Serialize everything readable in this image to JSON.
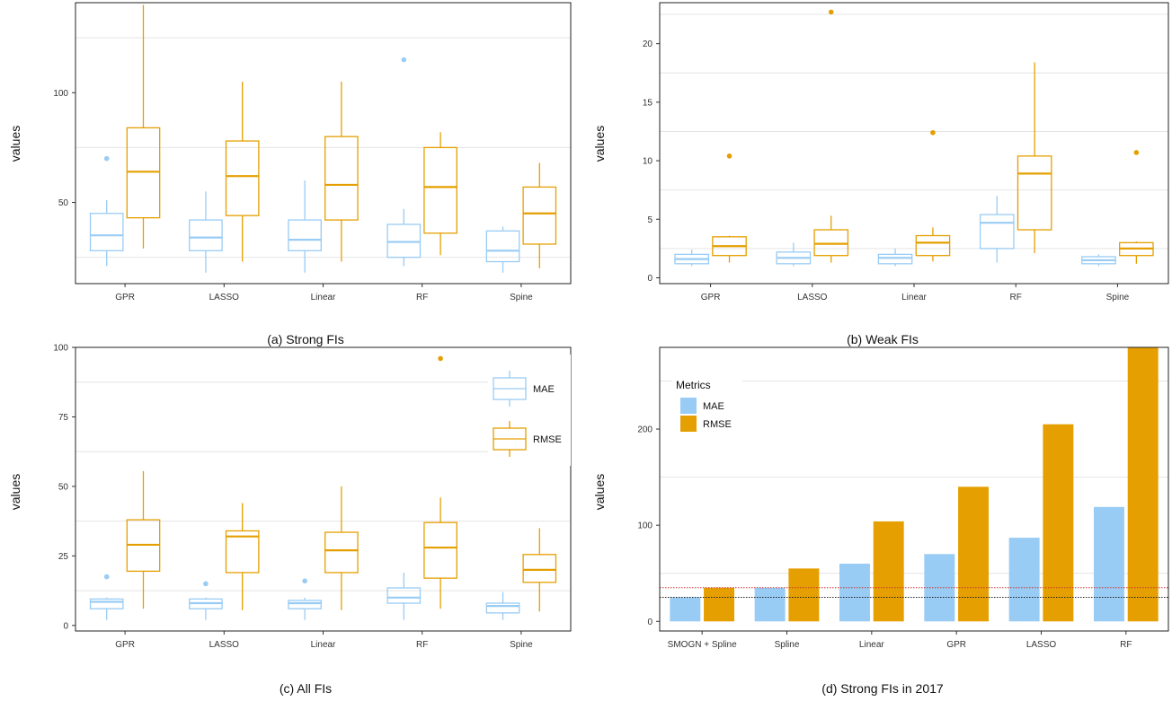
{
  "colors": {
    "mae": "#99CCF5",
    "rmse": "#E59F00",
    "grid": "#e4e4e4",
    "ref_red": "#cc3333",
    "ref_black": "#222222"
  },
  "chart_data": [
    {
      "type": "box",
      "caption": "(a) Strong FIs",
      "ylabel": "values",
      "ylim": [
        13,
        141
      ],
      "yticks": [
        50,
        100
      ],
      "gridlines": [
        25,
        75,
        125
      ],
      "categories": [
        "GPR",
        "LASSO",
        "Linear",
        "RF",
        "Spine"
      ],
      "series": [
        {
          "key": "mae",
          "boxes": [
            {
              "whislo": 21,
              "q1": 28,
              "med": 35,
              "q3": 45,
              "whishi": 51,
              "fliers": [
                70
              ]
            },
            {
              "whislo": 18,
              "q1": 28,
              "med": 34,
              "q3": 42,
              "whishi": 55,
              "fliers": []
            },
            {
              "whislo": 18,
              "q1": 28,
              "med": 33,
              "q3": 42,
              "whishi": 60,
              "fliers": []
            },
            {
              "whislo": 21,
              "q1": 25,
              "med": 32,
              "q3": 40,
              "whishi": 47,
              "fliers": [
                115
              ]
            },
            {
              "whislo": 18,
              "q1": 23,
              "med": 28,
              "q3": 37,
              "whishi": 39,
              "fliers": []
            }
          ]
        },
        {
          "key": "rmse",
          "boxes": [
            {
              "whislo": 29,
              "q1": 43,
              "med": 64,
              "q3": 84,
              "whishi": 140,
              "fliers": []
            },
            {
              "whislo": 23,
              "q1": 44,
              "med": 62,
              "q3": 78,
              "whishi": 105,
              "fliers": []
            },
            {
              "whislo": 23,
              "q1": 42,
              "med": 58,
              "q3": 80,
              "whishi": 105,
              "fliers": []
            },
            {
              "whislo": 26,
              "q1": 36,
              "med": 57,
              "q3": 75,
              "whishi": 82,
              "fliers": []
            },
            {
              "whislo": 20,
              "q1": 31,
              "med": 45,
              "q3": 57,
              "whishi": 68,
              "fliers": []
            }
          ]
        }
      ]
    },
    {
      "type": "box",
      "caption": "(b) Weak FIs",
      "ylabel": "values",
      "ylim": [
        -0.5,
        23.5
      ],
      "yticks": [
        0,
        5,
        10,
        15,
        20
      ],
      "gridlines": [
        2.5,
        7.5,
        12.5,
        17.5,
        22.5
      ],
      "categories": [
        "GPR",
        "LASSO",
        "Linear",
        "RF",
        "Spine"
      ],
      "series": [
        {
          "key": "mae",
          "boxes": [
            {
              "whislo": 1.0,
              "q1": 1.2,
              "med": 1.6,
              "q3": 2.0,
              "whishi": 2.4,
              "fliers": []
            },
            {
              "whislo": 1.0,
              "q1": 1.2,
              "med": 1.7,
              "q3": 2.2,
              "whishi": 3.0,
              "fliers": []
            },
            {
              "whislo": 1.0,
              "q1": 1.2,
              "med": 1.7,
              "q3": 2.0,
              "whishi": 2.5,
              "fliers": []
            },
            {
              "whislo": 1.3,
              "q1": 2.5,
              "med": 4.7,
              "q3": 5.4,
              "whishi": 7.0,
              "fliers": []
            },
            {
              "whislo": 1.0,
              "q1": 1.2,
              "med": 1.5,
              "q3": 1.8,
              "whishi": 2.0,
              "fliers": []
            }
          ]
        },
        {
          "key": "rmse",
          "boxes": [
            {
              "whislo": 1.3,
              "q1": 1.9,
              "med": 2.7,
              "q3": 3.5,
              "whishi": 3.6,
              "fliers": [
                10.4
              ]
            },
            {
              "whislo": 1.3,
              "q1": 1.9,
              "med": 2.9,
              "q3": 4.1,
              "whishi": 5.3,
              "fliers": [
                22.7
              ]
            },
            {
              "whislo": 1.4,
              "q1": 1.9,
              "med": 3.0,
              "q3": 3.6,
              "whishi": 4.3,
              "fliers": [
                12.4
              ]
            },
            {
              "whislo": 2.1,
              "q1": 4.1,
              "med": 8.9,
              "q3": 10.4,
              "whishi": 18.4,
              "fliers": []
            },
            {
              "whislo": 1.2,
              "q1": 1.9,
              "med": 2.5,
              "q3": 3.0,
              "whishi": 3.1,
              "fliers": [
                10.7
              ]
            }
          ]
        }
      ]
    },
    {
      "type": "box",
      "caption": "(c) All FIs",
      "ylabel": "values",
      "ylim": [
        -2,
        100
      ],
      "yticks": [
        0,
        25,
        50,
        75,
        100
      ],
      "gridlines": [
        12.5,
        37.5,
        62.5,
        87.5
      ],
      "categories": [
        "GPR",
        "LASSO",
        "Linear",
        "RF",
        "Spine"
      ],
      "legend": {
        "position": "top-right",
        "items": [
          {
            "key": "mae",
            "label": "MAE"
          },
          {
            "key": "rmse",
            "label": "RMSE"
          }
        ]
      },
      "series": [
        {
          "key": "mae",
          "boxes": [
            {
              "whislo": 2,
              "q1": 6,
              "med": 8.5,
              "q3": 9.5,
              "whishi": 10,
              "fliers": [
                17.5
              ]
            },
            {
              "whislo": 2,
              "q1": 6,
              "med": 8,
              "q3": 9.5,
              "whishi": 10,
              "fliers": [
                15
              ]
            },
            {
              "whislo": 2,
              "q1": 6,
              "med": 8,
              "q3": 9,
              "whishi": 10,
              "fliers": [
                16
              ]
            },
            {
              "whislo": 2,
              "q1": 8,
              "med": 10,
              "q3": 13.5,
              "whishi": 19,
              "fliers": []
            },
            {
              "whislo": 2,
              "q1": 4.5,
              "med": 7,
              "q3": 8,
              "whishi": 12,
              "fliers": []
            }
          ]
        },
        {
          "key": "rmse",
          "boxes": [
            {
              "whislo": 6,
              "q1": 19.5,
              "med": 29,
              "q3": 38,
              "whishi": 55.5,
              "fliers": []
            },
            {
              "whislo": 5.5,
              "q1": 19,
              "med": 32,
              "q3": 34,
              "whishi": 44,
              "fliers": []
            },
            {
              "whislo": 5.5,
              "q1": 19,
              "med": 27,
              "q3": 33.5,
              "whishi": 50,
              "fliers": []
            },
            {
              "whislo": 6,
              "q1": 17,
              "med": 28,
              "q3": 37,
              "whishi": 46,
              "fliers": [
                96
              ]
            },
            {
              "whislo": 5,
              "q1": 15.5,
              "med": 20,
              "q3": 25.5,
              "whishi": 35,
              "fliers": []
            }
          ]
        }
      ]
    },
    {
      "type": "bar",
      "caption": "(d) Strong FIs in 2017",
      "ylabel": "values",
      "ylim": [
        -10,
        285
      ],
      "yticks": [
        0,
        100,
        200
      ],
      "gridlines": [
        50,
        150,
        250
      ],
      "categories": [
        "SMOGN + Spline",
        "Spline",
        "Linear",
        "GPR",
        "LASSO",
        "RF"
      ],
      "legend": {
        "title": "Metrics",
        "position": "top-left",
        "items": [
          {
            "key": "mae",
            "label": "MAE"
          },
          {
            "key": "rmse",
            "label": "RMSE"
          }
        ]
      },
      "series": [
        {
          "key": "mae",
          "values": [
            25,
            35,
            60,
            70,
            87,
            119
          ]
        },
        {
          "key": "rmse",
          "values": [
            35,
            55,
            104,
            140,
            205,
            285
          ]
        }
      ],
      "reference_lines": [
        {
          "value": 35,
          "color": "ref_red"
        },
        {
          "value": 25,
          "color": "ref_black"
        }
      ]
    }
  ]
}
